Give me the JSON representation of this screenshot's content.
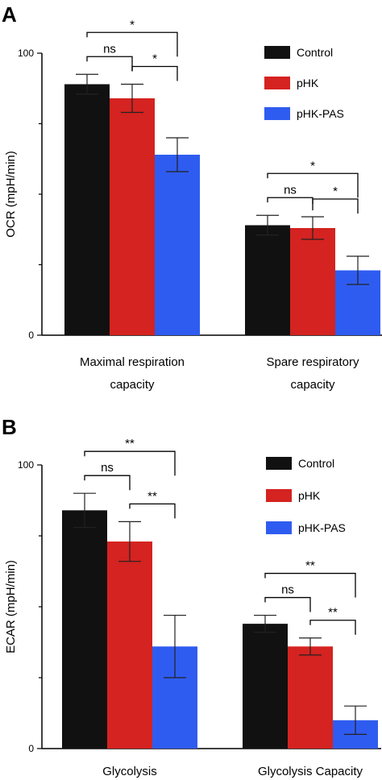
{
  "chart_data": [
    {
      "type": "bar",
      "panel": "A",
      "ylabel": "OCR (mpH/min)",
      "ylim": [
        0,
        100
      ],
      "yticks": [
        0,
        100
      ],
      "categories": [
        [
          "Maximal respiration",
          "capacity"
        ],
        [
          "Spare respiratory",
          "capacity"
        ]
      ],
      "series": [
        {
          "name": "Control",
          "color": "#111111",
          "values": [
            89,
            39
          ],
          "errors": [
            3.5,
            3.5
          ]
        },
        {
          "name": "pHK",
          "color": "#d42320",
          "values": [
            84,
            38
          ],
          "errors": [
            5,
            4
          ]
        },
        {
          "name": "pHK-PAS",
          "color": "#2f5cf0",
          "values": [
            64,
            23
          ],
          "errors": [
            6,
            5
          ]
        }
      ],
      "comparisons": [
        {
          "group": 0,
          "from": 0,
          "to": 1,
          "label": "ns",
          "level": 1
        },
        {
          "group": 0,
          "from": 1,
          "to": 2,
          "label": "*",
          "level": 1
        },
        {
          "group": 0,
          "from": 0,
          "to": 2,
          "label": "*",
          "level": 2
        },
        {
          "group": 1,
          "from": 0,
          "to": 1,
          "label": "ns",
          "level": 1
        },
        {
          "group": 1,
          "from": 1,
          "to": 2,
          "label": "*",
          "level": 1
        },
        {
          "group": 1,
          "from": 0,
          "to": 2,
          "label": "*",
          "level": 2
        }
      ],
      "legend": "top-right"
    },
    {
      "type": "bar",
      "panel": "B",
      "ylabel": "ECAR (mpH/min)",
      "ylim": [
        0,
        100
      ],
      "yticks": [
        0,
        100
      ],
      "categories": [
        [
          "Glycolysis"
        ],
        [
          "Glycolysis Capacity"
        ]
      ],
      "series": [
        {
          "name": "Control",
          "color": "#111111",
          "values": [
            84,
            44
          ],
          "errors": [
            6,
            3
          ]
        },
        {
          "name": "pHK",
          "color": "#d42320",
          "values": [
            73,
            36
          ],
          "errors": [
            7,
            3
          ]
        },
        {
          "name": "pHK-PAS",
          "color": "#2f5cf0",
          "values": [
            36,
            10
          ],
          "errors": [
            11,
            5
          ]
        }
      ],
      "comparisons": [
        {
          "group": 0,
          "from": 0,
          "to": 1,
          "label": "ns",
          "level": 1
        },
        {
          "group": 0,
          "from": 1,
          "to": 2,
          "label": "**",
          "level": 1
        },
        {
          "group": 0,
          "from": 0,
          "to": 2,
          "label": "**",
          "level": 2
        },
        {
          "group": 1,
          "from": 0,
          "to": 1,
          "label": "ns",
          "level": 1
        },
        {
          "group": 1,
          "from": 1,
          "to": 2,
          "label": "**",
          "level": 1
        },
        {
          "group": 1,
          "from": 0,
          "to": 2,
          "label": "**",
          "level": 2
        }
      ],
      "legend": "top-right"
    }
  ]
}
